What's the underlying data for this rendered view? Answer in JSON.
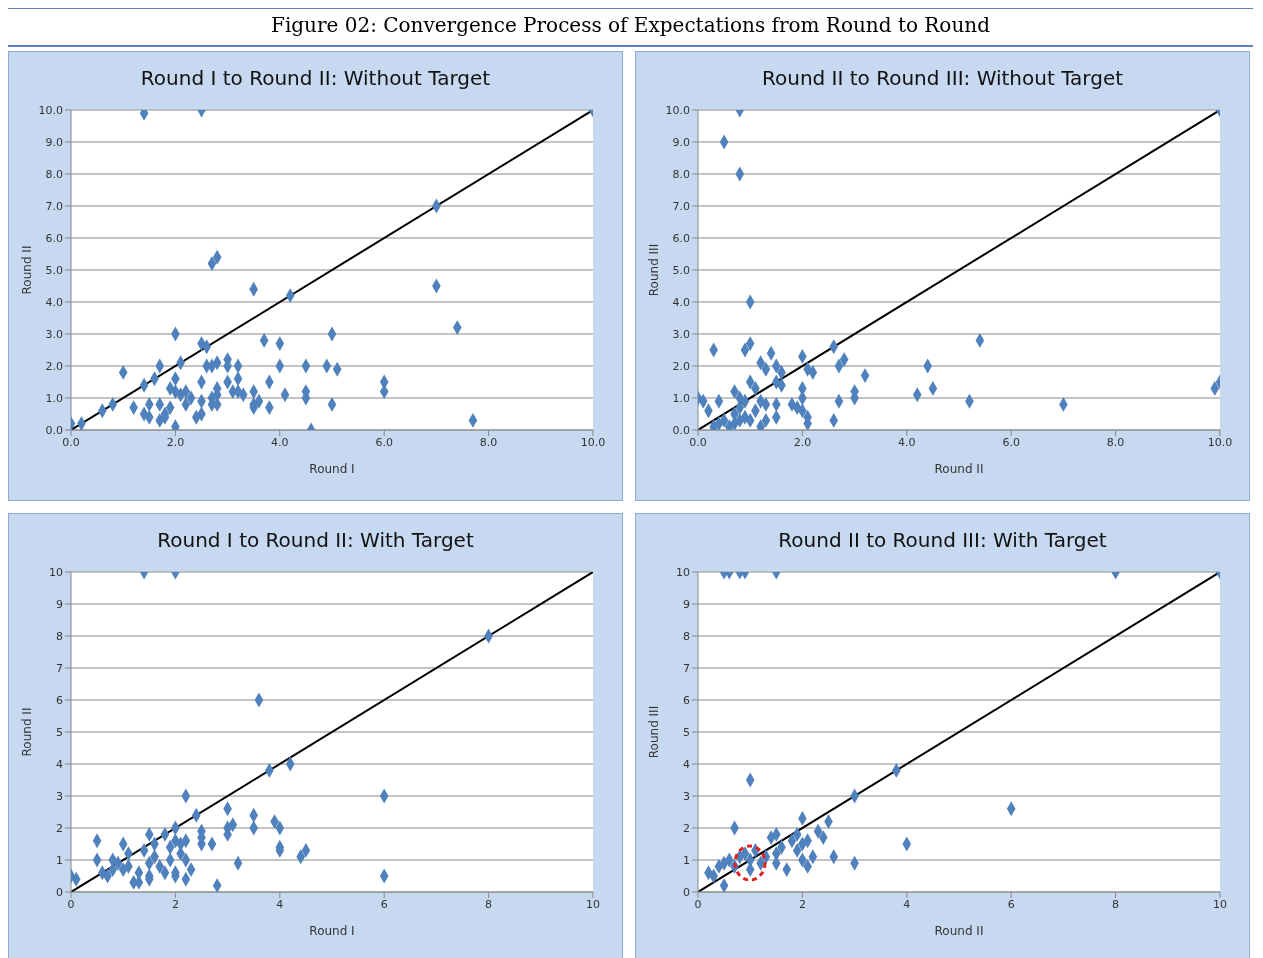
{
  "chart_data": [
    {
      "type": "scatter",
      "title": "Round I to Round II: Without Target",
      "xlabel": "Round I",
      "ylabel": "Round II",
      "annotations": [
        "Figure 02: Convergence Process of Expectations from Round to Round"
      ],
      "grid": "y",
      "xlim": [
        0,
        10
      ],
      "xticks": [
        {
          "value": 0,
          "label": "0.0"
        },
        {
          "value": 2,
          "label": "2.0"
        },
        {
          "value": 4,
          "label": "4.0"
        },
        {
          "value": 6,
          "label": "6.0"
        },
        {
          "value": 8,
          "label": "8.0"
        },
        {
          "value": 10,
          "label": "10.0"
        }
      ],
      "ylim": [
        0,
        10
      ],
      "yticks": [
        {
          "value": 0,
          "label": "0.0"
        },
        {
          "value": 1,
          "label": "1.0"
        },
        {
          "value": 2,
          "label": "2.0"
        },
        {
          "value": 3,
          "label": "3.0"
        },
        {
          "value": 4,
          "label": "4.0"
        },
        {
          "value": 5,
          "label": "5.0"
        },
        {
          "value": 6,
          "label": "6.0"
        },
        {
          "value": 7,
          "label": "7.0"
        },
        {
          "value": 8,
          "label": "8.0"
        },
        {
          "value": 9,
          "label": "9.0"
        },
        {
          "value": 10,
          "label": "10.0"
        }
      ],
      "series": [
        {
          "marker": "diamond",
          "color": "#4f81bd",
          "x": [
            0,
            0.2,
            0.6,
            0.8,
            1.0,
            1.2,
            1.4,
            1.4,
            1.5,
            1.5,
            1.6,
            1.7,
            1.7,
            1.7,
            1.8,
            1.8,
            1.9,
            1.9,
            2.0,
            2.0,
            2.0,
            2.0,
            2.1,
            2.1,
            2.2,
            2.2,
            2.3,
            2.4,
            2.5,
            2.5,
            2.5,
            2.5,
            2.6,
            2.6,
            2.7,
            2.7,
            2.7,
            2.7,
            2.8,
            2.8,
            2.8,
            2.8,
            2.8,
            3.0,
            3.0,
            3.0,
            3.1,
            3.2,
            3.2,
            3.2,
            3.3,
            3.5,
            3.5,
            3.5,
            3.5,
            3.6,
            3.7,
            3.8,
            3.8,
            4.0,
            4.0,
            4.1,
            4.2,
            4.5,
            4.5,
            4.5,
            4.6,
            4.9,
            5.0,
            5.0,
            5.1,
            6.0,
            6.0,
            7.0,
            7.0,
            7.4,
            7.7,
            1.4,
            2.5,
            10.0
          ],
          "values": [
            0.2,
            0.2,
            0.6,
            0.8,
            1.8,
            0.7,
            1.4,
            0.5,
            0.4,
            0.8,
            1.6,
            2.0,
            0.8,
            0.3,
            0.5,
            0.4,
            0.7,
            1.3,
            1.6,
            1.2,
            3.0,
            0.1,
            1.1,
            2.1,
            1.2,
            0.8,
            1.0,
            0.4,
            0.5,
            0.9,
            1.5,
            2.7,
            2.6,
            2.0,
            0.8,
            2.0,
            1.0,
            5.2,
            5.4,
            2.1,
            1.3,
            0.8,
            1.1,
            2.2,
            2.0,
            1.5,
            1.2,
            1.6,
            2.0,
            1.2,
            1.1,
            4.4,
            1.2,
            0.7,
            0.8,
            0.9,
            2.8,
            1.5,
            0.7,
            2.7,
            2.0,
            1.1,
            4.2,
            2.0,
            1.2,
            1.0,
            0.0,
            2.0,
            3.0,
            0.8,
            1.9,
            1.5,
            1.2,
            7.0,
            4.5,
            3.2,
            0.3,
            9.9,
            10.0,
            10.0
          ]
        },
        {
          "type": "line",
          "color": "#000000",
          "x": [
            0,
            10
          ],
          "values": [
            0,
            10
          ]
        }
      ]
    },
    {
      "type": "scatter",
      "title": "Round II to Round III: Without Target",
      "xlabel": "Round II",
      "ylabel": "Round III",
      "grid": "y",
      "xlim": [
        0,
        10
      ],
      "xticks": [
        {
          "value": 0,
          "label": "0.0"
        },
        {
          "value": 2,
          "label": "2.0"
        },
        {
          "value": 4,
          "label": "4.0"
        },
        {
          "value": 6,
          "label": "6.0"
        },
        {
          "value": 8,
          "label": "8.0"
        },
        {
          "value": 10,
          "label": "10.0"
        }
      ],
      "ylim": [
        0,
        10
      ],
      "yticks": [
        {
          "value": 0,
          "label": "0.0"
        },
        {
          "value": 1,
          "label": "1.0"
        },
        {
          "value": 2,
          "label": "2.0"
        },
        {
          "value": 3,
          "label": "3.0"
        },
        {
          "value": 4,
          "label": "4.0"
        },
        {
          "value": 5,
          "label": "5.0"
        },
        {
          "value": 6,
          "label": "6.0"
        },
        {
          "value": 7,
          "label": "7.0"
        },
        {
          "value": 8,
          "label": "8.0"
        },
        {
          "value": 9,
          "label": "9.0"
        },
        {
          "value": 10,
          "label": "10.0"
        }
      ],
      "series": [
        {
          "marker": "diamond",
          "color": "#4f81bd",
          "x": [
            0.0,
            0.1,
            0.2,
            0.3,
            0.4,
            0.3,
            0.4,
            0.5,
            0.6,
            0.7,
            0.7,
            0.7,
            0.8,
            0.8,
            0.8,
            0.9,
            0.9,
            0.9,
            1.0,
            1.0,
            1.0,
            1.0,
            1.1,
            1.1,
            1.2,
            1.2,
            1.2,
            1.3,
            1.3,
            1.3,
            1.4,
            1.5,
            1.5,
            1.5,
            1.5,
            1.6,
            1.6,
            1.8,
            1.9,
            2.0,
            2.0,
            2.0,
            2.0,
            2.1,
            2.1,
            2.1,
            2.2,
            2.6,
            2.6,
            2.7,
            2.7,
            2.8,
            3.0,
            3.0,
            3.2,
            4.2,
            4.4,
            4.5,
            5.2,
            5.4,
            7.0,
            9.9,
            10.0,
            0.5,
            0.8,
            0.8,
            10.0
          ],
          "values": [
            1.0,
            0.9,
            0.6,
            2.5,
            0.9,
            0.1,
            0.2,
            0.3,
            0.1,
            1.2,
            0.5,
            0.2,
            1.0,
            0.7,
            0.3,
            2.5,
            0.9,
            0.4,
            2.7,
            1.5,
            4.0,
            0.3,
            1.3,
            0.6,
            2.1,
            0.9,
            0.1,
            1.9,
            0.8,
            0.3,
            2.4,
            2.0,
            1.5,
            0.8,
            0.4,
            1.8,
            1.4,
            0.8,
            0.7,
            2.3,
            1.3,
            1.0,
            0.6,
            1.9,
            0.4,
            0.2,
            1.8,
            2.6,
            0.3,
            2.0,
            0.9,
            2.2,
            1.2,
            1.0,
            1.7,
            1.1,
            2.0,
            1.3,
            0.9,
            2.8,
            0.8,
            1.3,
            1.5,
            9.0,
            8.0,
            10.0,
            10.0
          ]
        },
        {
          "type": "line",
          "color": "#000000",
          "x": [
            0,
            10
          ],
          "values": [
            0,
            10
          ]
        }
      ]
    },
    {
      "type": "scatter",
      "title": "Round I to Round II: With Target",
      "xlabel": "Round I",
      "ylabel": "Round II",
      "grid": "y",
      "xlim": [
        0,
        10
      ],
      "xticks": [
        0,
        2,
        4,
        6,
        8,
        10
      ],
      "ylim": [
        0,
        10
      ],
      "yticks": [
        0,
        1,
        2,
        3,
        4,
        5,
        6,
        7,
        8,
        9,
        10
      ],
      "series": [
        {
          "marker": "diamond",
          "color": "#4f81bd",
          "x": [
            0,
            0.1,
            0.5,
            0.5,
            0.6,
            0.7,
            0.8,
            0.8,
            0.9,
            1.0,
            1.0,
            1.1,
            1.1,
            1.2,
            1.3,
            1.3,
            1.4,
            1.5,
            1.5,
            1.5,
            1.5,
            1.6,
            1.6,
            1.7,
            1.8,
            1.8,
            1.9,
            1.9,
            2.0,
            2.0,
            2.0,
            2.0,
            2.1,
            2.1,
            2.2,
            2.2,
            2.2,
            2.2,
            2.3,
            2.4,
            2.5,
            2.5,
            2.5,
            2.7,
            2.8,
            3.0,
            3.0,
            3.0,
            3.1,
            3.2,
            3.5,
            3.5,
            3.6,
            3.8,
            3.9,
            4.0,
            4.0,
            4.0,
            4.2,
            4.4,
            4.5,
            6.0,
            6.0,
            8.0,
            1.4,
            2.0
          ],
          "values": [
            0.5,
            0.4,
            1.6,
            1.0,
            0.6,
            0.5,
            1.0,
            0.7,
            0.9,
            1.5,
            0.7,
            1.2,
            0.8,
            0.3,
            0.3,
            0.6,
            1.3,
            1.8,
            0.9,
            0.5,
            0.4,
            1.5,
            1.1,
            0.8,
            1.8,
            0.6,
            1.4,
            1.0,
            2.0,
            1.6,
            0.6,
            0.5,
            1.5,
            1.2,
            3.0,
            1.6,
            1.0,
            0.4,
            0.7,
            2.4,
            1.9,
            1.7,
            1.5,
            1.5,
            0.2,
            2.6,
            2.0,
            1.8,
            2.1,
            0.9,
            2.4,
            2.0,
            6.0,
            3.8,
            2.2,
            2.0,
            1.4,
            1.3,
            4.0,
            1.1,
            1.3,
            3.0,
            0.5,
            8.0,
            10,
            10
          ]
        },
        {
          "type": "line",
          "color": "#000000",
          "x": [
            0,
            10
          ],
          "values": [
            0,
            10
          ]
        }
      ]
    },
    {
      "type": "scatter",
      "title": "Round II to Round III: With Target",
      "xlabel": "Round II",
      "ylabel": "Round III",
      "grid": "y",
      "xlim": [
        0,
        10
      ],
      "xticks": [
        0,
        2,
        4,
        6,
        8,
        10
      ],
      "ylim": [
        0,
        10
      ],
      "yticks": [
        0,
        1,
        2,
        3,
        4,
        5,
        6,
        7,
        8,
        9,
        10
      ],
      "series": [
        {
          "marker": "diamond",
          "color": "#4f81bd",
          "x": [
            0.2,
            0.3,
            0.4,
            0.5,
            0.5,
            0.6,
            0.7,
            0.7,
            0.8,
            0.9,
            1.0,
            1.0,
            1.0,
            1.1,
            1.2,
            1.3,
            1.4,
            1.5,
            1.5,
            1.5,
            1.6,
            1.7,
            1.8,
            1.9,
            1.9,
            2.0,
            2.0,
            2.0,
            2.1,
            2.1,
            2.2,
            2.3,
            2.4,
            2.5,
            2.6,
            3.0,
            3.0,
            3.8,
            4.0,
            6.0,
            0.5,
            0.6,
            0.8,
            0.9,
            1.5,
            8.0,
            10
          ],
          "values": [
            0.6,
            0.5,
            0.8,
            0.2,
            0.9,
            1.0,
            2.0,
            0.8,
            1.1,
            1.2,
            3.5,
            0.7,
            1.0,
            1.3,
            0.9,
            1.1,
            1.7,
            1.8,
            1.2,
            0.9,
            1.4,
            0.7,
            1.6,
            1.3,
            1.8,
            2.3,
            1.5,
            1.0,
            1.6,
            0.8,
            1.1,
            1.9,
            1.7,
            2.2,
            1.1,
            3.0,
            0.9,
            3.8,
            1.5,
            2.6,
            10,
            10,
            10,
            10,
            10,
            10,
            10
          ]
        },
        {
          "type": "line",
          "color": "#000000",
          "x": [
            0,
            10
          ],
          "values": [
            0,
            10
          ]
        }
      ]
    }
  ]
}
